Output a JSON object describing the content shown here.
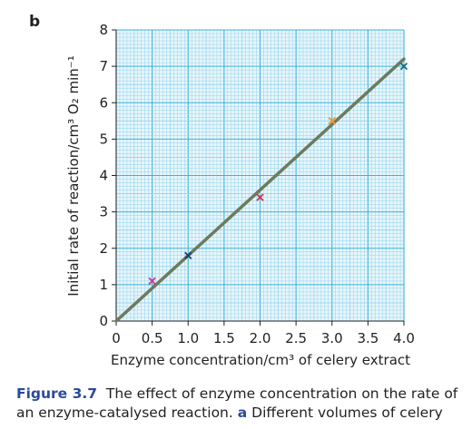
{
  "panel_label": "b",
  "caption": {
    "figure_label": "Figure 3.7",
    "line1_text": "The effect of enzyme concentration on the rate of",
    "line2_prefix": "an enzyme-catalysed reaction.",
    "line2_bold": "a",
    "line2_rest": "Different volumes of celery"
  },
  "colors": {
    "grid_background": "#e9f6fb",
    "grid_minor": "#8fd3ec",
    "grid_major": "#3fb2dc",
    "best_fit_line": "#6e7a5c",
    "point_pink": "#d6338e",
    "point_navy": "#1f3b73",
    "point_red": "#c8364a",
    "point_orange": "#f29a32",
    "point_teal": "#1c6b78"
  },
  "chart_data": {
    "type": "scatter",
    "xlabel": "Enzyme concentration/cm³ of celery extract",
    "ylabel": "Initial rate of reaction/cm³ O₂ min⁻¹",
    "xlim": [
      0,
      4.0
    ],
    "ylim": [
      0,
      8
    ],
    "x_ticks": [
      "0",
      "0.5",
      "1.0",
      "1.5",
      "2.0",
      "2.5",
      "3.0",
      "3.5",
      "4.0"
    ],
    "y_ticks": [
      "0",
      "1",
      "2",
      "3",
      "4",
      "5",
      "6",
      "7",
      "8"
    ],
    "grid": true,
    "points": [
      {
        "x": 0.5,
        "y": 1.1,
        "color": "#d6338e"
      },
      {
        "x": 1.0,
        "y": 1.8,
        "color": "#1f3b73"
      },
      {
        "x": 2.0,
        "y": 3.4,
        "color": "#c8364a"
      },
      {
        "x": 3.0,
        "y": 5.5,
        "color": "#f29a32"
      },
      {
        "x": 4.0,
        "y": 7.0,
        "color": "#1c6b78"
      }
    ],
    "best_fit_line": {
      "from": [
        0,
        0
      ],
      "to": [
        4.0,
        7.2
      ]
    }
  }
}
